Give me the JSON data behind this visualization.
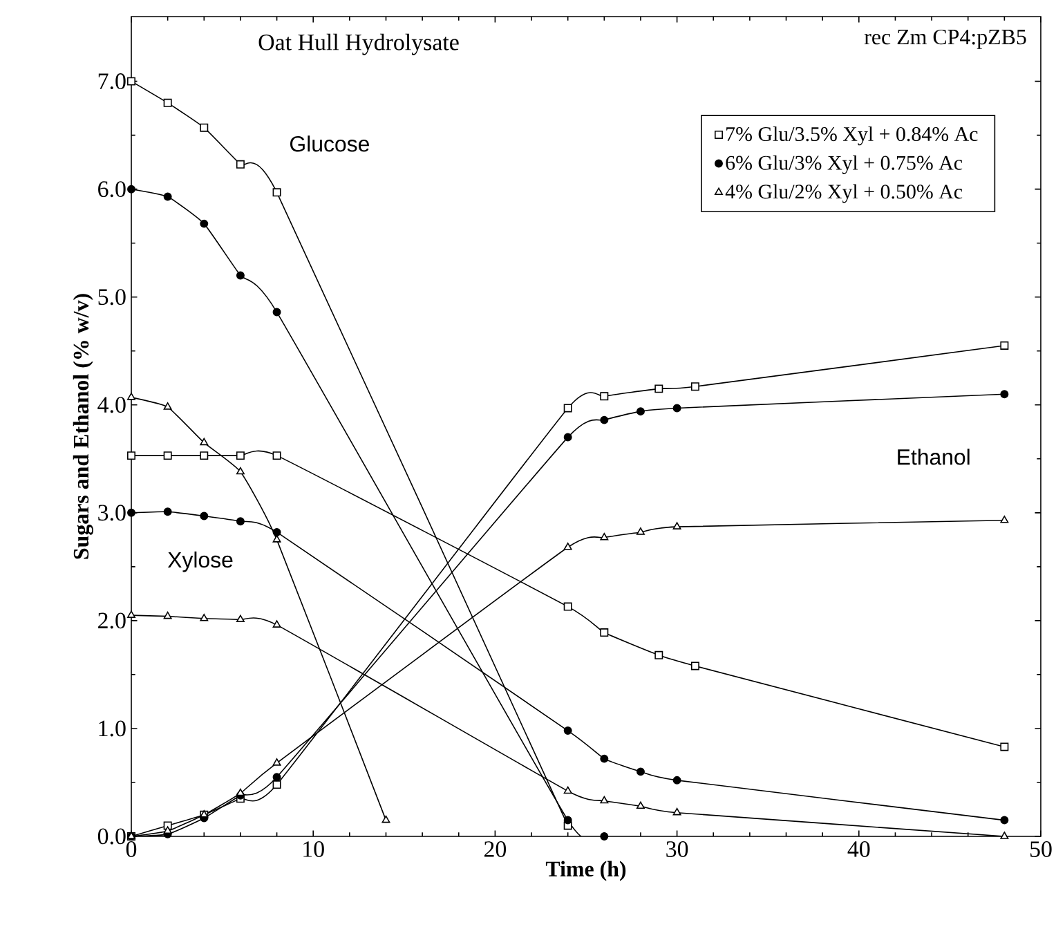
{
  "chart_data": {
    "type": "line",
    "title": "Oat Hull Hydrolysate",
    "subtitle": "rec Zm CP4:pZB5",
    "xlabel": "Time (h)",
    "ylabel": "Sugars and Ethanol  (% w/v)",
    "xlim": [
      0,
      50
    ],
    "ylim": [
      0,
      7.6
    ],
    "xticks": [
      0,
      10,
      20,
      30,
      40,
      50
    ],
    "yticks": [
      {
        "value": 0,
        "label": "0.0"
      },
      {
        "value": 1,
        "label": "1.0"
      },
      {
        "value": 2,
        "label": "2.0"
      },
      {
        "value": 3,
        "label": "3.0"
      },
      {
        "value": 4,
        "label": "4.0"
      },
      {
        "value": 5,
        "label": "5.0"
      },
      {
        "value": 6,
        "label": "6.0"
      },
      {
        "value": 7,
        "label": "7.0"
      }
    ],
    "legend": "top right",
    "grid": false,
    "line_style": "solid",
    "annotations": [
      "Glucose",
      "Xylose",
      "Ethanol"
    ],
    "series": [
      {
        "name": "7% Glu/3.5% Xyl + 0.84% Ac",
        "color": "#000000",
        "marker": "square",
        "x": [
          0,
          2,
          4,
          6,
          8,
          24
        ],
        "values": [
          7.0,
          6.8,
          6.57,
          6.23,
          5.97,
          0.1
        ]
      },
      {
        "name": "6% Glu/3% Xyl + 0.75% Ac",
        "color": "#000000",
        "marker": "circle",
        "x": [
          0,
          2,
          4,
          6,
          8,
          24,
          26
        ],
        "values": [
          6.0,
          5.93,
          5.68,
          5.2,
          4.86,
          0.15,
          0.0
        ]
      },
      {
        "name": "4% Glu/2% Xyl + 0.50% Ac",
        "color": "#000000",
        "marker": "triangle",
        "x": [
          0,
          2,
          4,
          6,
          8,
          14
        ],
        "values": [
          4.07,
          3.98,
          3.65,
          3.38,
          2.75,
          0.15
        ]
      },
      {
        "color": "#000000",
        "marker": "square",
        "x": [
          0,
          2,
          4,
          6,
          8,
          24,
          26,
          29,
          31,
          48
        ],
        "values": [
          3.53,
          3.53,
          3.53,
          3.53,
          3.53,
          2.13,
          1.89,
          1.68,
          1.58,
          0.83
        ]
      },
      {
        "color": "#000000",
        "marker": "circle",
        "x": [
          0,
          2,
          4,
          6,
          8,
          24,
          26,
          28,
          30,
          48
        ],
        "values": [
          3.0,
          3.01,
          2.97,
          2.92,
          2.82,
          0.98,
          0.72,
          0.6,
          0.52,
          0.15
        ]
      },
      {
        "color": "#000000",
        "marker": "triangle",
        "x": [
          0,
          2,
          4,
          6,
          8,
          24,
          26,
          28,
          30,
          48
        ],
        "values": [
          2.05,
          2.04,
          2.02,
          2.01,
          1.96,
          0.42,
          0.33,
          0.28,
          0.22,
          0.0
        ]
      },
      {
        "color": "#000000",
        "marker": "square",
        "x": [
          0,
          2,
          4,
          6,
          8,
          24,
          26,
          29,
          31,
          48
        ],
        "values": [
          0.0,
          0.1,
          0.2,
          0.35,
          0.48,
          3.97,
          4.08,
          4.15,
          4.17,
          4.55
        ]
      },
      {
        "color": "#000000",
        "marker": "circle",
        "x": [
          0,
          2,
          4,
          6,
          8,
          24,
          26,
          28,
          30,
          48
        ],
        "values": [
          0.0,
          0.02,
          0.17,
          0.38,
          0.55,
          3.7,
          3.86,
          3.94,
          3.97,
          4.1
        ]
      },
      {
        "color": "#000000",
        "marker": "triangle",
        "x": [
          0,
          2,
          4,
          6,
          8,
          24,
          26,
          28,
          30,
          48
        ],
        "values": [
          0.0,
          0.05,
          0.2,
          0.4,
          0.68,
          2.68,
          2.77,
          2.82,
          2.87,
          2.93
        ]
      }
    ]
  }
}
